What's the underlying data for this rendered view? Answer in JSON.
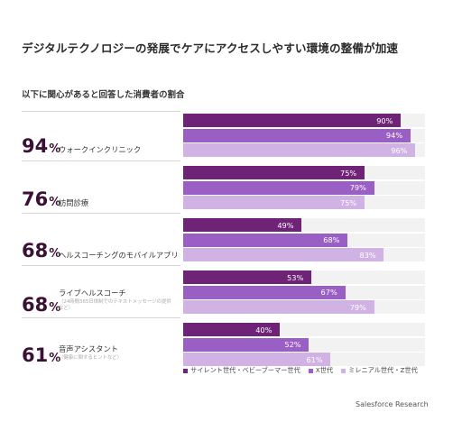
{
  "headline": "デジタルテクノロジーの発展でケアにアクセスしやすい環境の整備が加速",
  "source": "Salesforce Research",
  "colors": {
    "series1": "#6f2377",
    "series2": "#9a5fc4",
    "series3": "#d0b3e4",
    "track": "#f2f2f2",
    "percent": "#3a1035"
  },
  "chart_data": {
    "type": "bar",
    "title": "以下に関心があると回答した消費者の割合",
    "orientation": "horizontal",
    "xlim": [
      0,
      100
    ],
    "categories": [
      {
        "label": "ウォークインクリニック",
        "sublabel": "",
        "total": "94"
      },
      {
        "label": "訪問診療",
        "sublabel": "",
        "total": "76"
      },
      {
        "label": "ヘルスコーチングのモバイルアプリ",
        "sublabel": "",
        "total": "68"
      },
      {
        "label": "ライブヘルスコーチ",
        "sublabel": "（24時間365日体制でのテキストメッセージの提供など）",
        "total": "68"
      },
      {
        "label": "音声アシスタント",
        "sublabel": "（健康に関するヒントなど）",
        "total": "61"
      }
    ],
    "series": [
      {
        "name": "サイレント世代・ベビーブーマー世代",
        "values": [
          90,
          75,
          49,
          53,
          40
        ]
      },
      {
        "name": "X世代",
        "values": [
          94,
          79,
          68,
          67,
          52
        ]
      },
      {
        "name": "ミレニアル世代・Z世代",
        "values": [
          96,
          75,
          83,
          79,
          61
        ]
      }
    ],
    "value_suffix": "%",
    "legend_position": "bottom"
  }
}
